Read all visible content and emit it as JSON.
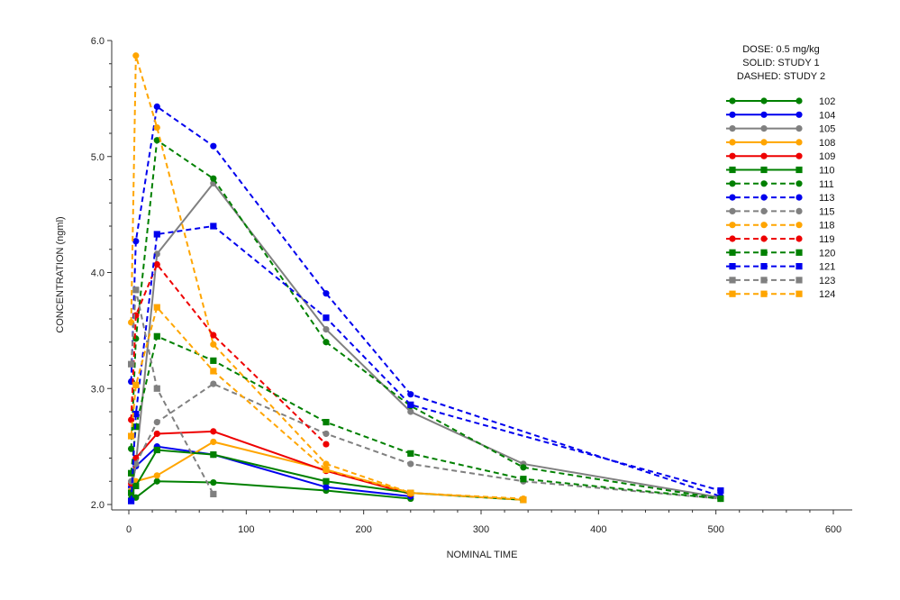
{
  "chart_data": {
    "type": "line",
    "title": "",
    "xlabel": "NOMINAL TIME",
    "ylabel": "CONCENTRATION (ngml)",
    "xlim": [
      -10,
      600
    ],
    "ylim": [
      1.95,
      6.0
    ],
    "xticks": [
      0,
      100,
      200,
      300,
      400,
      500,
      600
    ],
    "yticks": [
      2.0,
      3.0,
      4.0,
      5.0,
      6.0
    ],
    "xtick_labels": [
      "0",
      "100",
      "200",
      "300",
      "400",
      "500",
      "600"
    ],
    "ytick_labels": [
      "2.0",
      "3.0",
      "4.0",
      "5.0",
      "6.0"
    ],
    "grid": false,
    "legend_position": "top-right",
    "annotations": [
      "DOSE: 0.5 mg/kg",
      "SOLID: STUDY 1",
      "DASHED: STUDY 2"
    ],
    "series": [
      {
        "name": "102",
        "color": "#008000",
        "marker": "circle",
        "dash": "solid",
        "x": [
          2,
          6,
          24,
          72,
          168,
          240
        ],
        "y": [
          2.05,
          2.06,
          2.2,
          2.19,
          2.12,
          2.05
        ]
      },
      {
        "name": "104",
        "color": "#0000ee",
        "marker": "circle",
        "dash": "solid",
        "x": [
          2,
          6,
          24,
          72,
          168,
          240
        ],
        "y": [
          2.15,
          2.33,
          2.5,
          2.43,
          2.15,
          2.07
        ]
      },
      {
        "name": "105",
        "color": "#808080",
        "marker": "circle",
        "dash": "solid",
        "x": [
          2,
          6,
          24,
          72,
          168,
          240,
          336,
          504
        ],
        "y": [
          2.1,
          2.35,
          4.16,
          4.77,
          3.51,
          2.8,
          2.35,
          2.06
        ]
      },
      {
        "name": "108",
        "color": "#ffa500",
        "marker": "circle",
        "dash": "solid",
        "x": [
          2,
          6,
          24,
          72,
          168,
          240
        ],
        "y": [
          2.12,
          2.2,
          2.25,
          2.54,
          2.3,
          2.1
        ]
      },
      {
        "name": "109",
        "color": "#ee0000",
        "marker": "circle",
        "dash": "solid",
        "x": [
          2,
          6,
          24,
          72,
          168,
          240
        ],
        "y": [
          2.18,
          2.4,
          2.61,
          2.63,
          2.29,
          2.09
        ]
      },
      {
        "name": "110",
        "color": "#008000",
        "marker": "square",
        "dash": "solid",
        "x": [
          2,
          6,
          24,
          72,
          168,
          240,
          336
        ],
        "y": [
          2.1,
          2.16,
          2.47,
          2.43,
          2.2,
          2.1,
          2.04
        ]
      },
      {
        "name": "111",
        "color": "#008000",
        "marker": "circle",
        "dash": "dashed",
        "x": [
          2,
          6,
          24,
          72,
          168,
          240,
          336,
          504
        ],
        "y": [
          2.48,
          3.43,
          5.14,
          4.81,
          3.4,
          2.85,
          2.32,
          2.05
        ]
      },
      {
        "name": "113",
        "color": "#0000ee",
        "marker": "circle",
        "dash": "dashed",
        "x": [
          2,
          6,
          24,
          72,
          168,
          240,
          504
        ],
        "y": [
          3.06,
          4.27,
          5.43,
          5.09,
          3.82,
          2.95,
          2.07
        ]
      },
      {
        "name": "115",
        "color": "#808080",
        "marker": "circle",
        "dash": "dashed",
        "x": [
          2,
          6,
          24,
          72,
          168,
          240,
          336,
          504
        ],
        "y": [
          2.2,
          2.35,
          2.71,
          3.04,
          2.61,
          2.35,
          2.2,
          2.05
        ]
      },
      {
        "name": "118",
        "color": "#ffa500",
        "marker": "circle",
        "dash": "dashed",
        "x": [
          2,
          6,
          24,
          72,
          168,
          240,
          336
        ],
        "y": [
          3.57,
          5.87,
          5.25,
          3.38,
          2.35,
          2.1,
          2.05
        ]
      },
      {
        "name": "119",
        "color": "#ee0000",
        "marker": "circle",
        "dash": "dashed",
        "x": [
          2,
          6,
          24,
          72,
          168
        ],
        "y": [
          2.73,
          3.63,
          4.07,
          3.46,
          2.52
        ]
      },
      {
        "name": "120",
        "color": "#008000",
        "marker": "square",
        "dash": "dashed",
        "x": [
          2,
          6,
          24,
          72,
          168,
          240,
          336,
          504
        ],
        "y": [
          2.27,
          2.67,
          3.45,
          3.24,
          2.71,
          2.44,
          2.22,
          2.05
        ]
      },
      {
        "name": "121",
        "color": "#0000ee",
        "marker": "square",
        "dash": "dashed",
        "x": [
          2,
          6,
          24,
          72,
          168,
          240,
          504
        ],
        "y": [
          2.03,
          2.78,
          4.33,
          4.4,
          3.61,
          2.86,
          2.12
        ]
      },
      {
        "name": "123",
        "color": "#808080",
        "marker": "square",
        "dash": "dashed",
        "x": [
          2,
          6,
          24,
          72
        ],
        "y": [
          3.21,
          3.85,
          3.0,
          2.09
        ]
      },
      {
        "name": "124",
        "color": "#ffa500",
        "marker": "square",
        "dash": "dashed",
        "x": [
          2,
          6,
          24,
          72,
          168,
          240,
          336
        ],
        "y": [
          2.59,
          3.03,
          3.7,
          3.15,
          2.3,
          2.1,
          2.04
        ]
      }
    ]
  }
}
